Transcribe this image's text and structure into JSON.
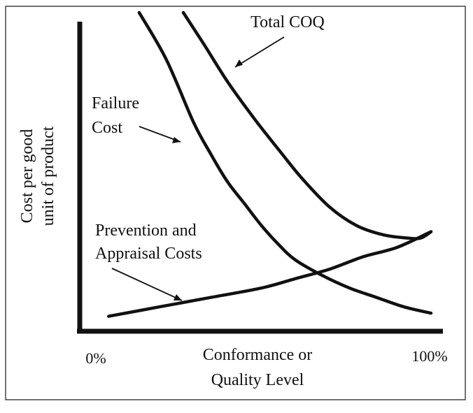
{
  "chart_data": {
    "type": "line",
    "title": "",
    "ylabel": [
      "Cost per good",
      "unit of product"
    ],
    "xlabel": [
      "Conformance or",
      "Quality Level"
    ],
    "x_tick_labels": {
      "start": "0%",
      "end": "100%"
    },
    "xlim": [
      0,
      100
    ],
    "ylim": [
      0,
      100
    ],
    "grid": false,
    "legend": "none",
    "colors": {
      "line": "#111111",
      "background": "#ffffff",
      "frame": "#444444"
    },
    "series": [
      {
        "key": "failure",
        "label": [
          "Failure",
          "Cost"
        ],
        "x": [
          14,
          22,
          30,
          35,
          40,
          45,
          50,
          55,
          60,
          68,
          76,
          84,
          92,
          100
        ],
        "y": [
          100,
          85,
          65,
          55,
          46,
          39,
          32,
          26,
          21,
          16,
          12,
          9,
          6,
          4
        ]
      },
      {
        "key": "total",
        "label": [
          "Total COQ"
        ],
        "x": [
          27,
          33,
          40,
          48,
          56,
          62,
          70,
          78,
          86,
          93,
          97,
          100
        ],
        "y": [
          100,
          90,
          78,
          66,
          55,
          47,
          38,
          32,
          29,
          28,
          28,
          30
        ]
      },
      {
        "key": "prevention",
        "label": [
          "Prevention and",
          "Appraisal Costs"
        ],
        "x": [
          5,
          20,
          35,
          50,
          60,
          70,
          80,
          90,
          100
        ],
        "y": [
          3,
          6,
          9,
          12,
          15,
          18,
          22,
          25,
          30
        ]
      }
    ]
  }
}
